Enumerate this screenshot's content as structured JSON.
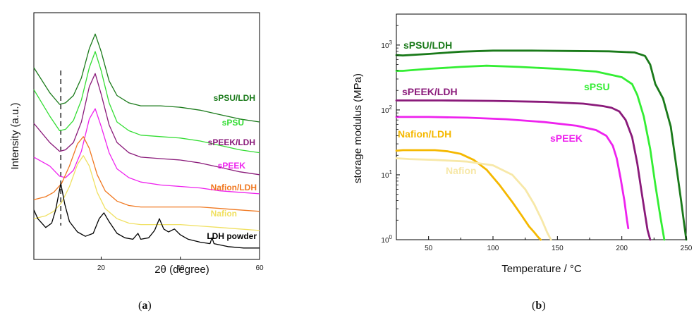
{
  "chart_data": [
    {
      "type": "line",
      "panel": "(a)",
      "panel_letter": "a",
      "xlabel": "2θ (degree)",
      "ylabel": "Intensity (a.u.)",
      "xlim": [
        3,
        60
      ],
      "x_ticks": [
        20,
        40,
        60
      ],
      "grid": false,
      "legend": "labels placed next to curves on right",
      "series": [
        {
          "name": "sPSU/LDH",
          "color": "#1a7a1a",
          "offset": 100,
          "sharp_peaks": false,
          "x": [
            3,
            7,
            9.5,
            11,
            13,
            15,
            17,
            18.5,
            20,
            22,
            24,
            27,
            30,
            35,
            40,
            45,
            50,
            55,
            60
          ],
          "y": [
            125,
            108,
            100,
            101,
            106,
            118,
            138,
            148,
            136,
            116,
            106,
            101,
            99,
            99,
            98,
            96,
            93,
            90,
            88
          ]
        },
        {
          "name": "sPSU",
          "color": "#33dd33",
          "offset": 80,
          "sharp_peaks": false,
          "x": [
            3,
            7,
            9.5,
            11,
            13,
            15,
            17,
            18.5,
            20,
            22,
            24,
            27,
            30,
            35,
            40,
            45,
            50,
            55,
            60
          ],
          "y": [
            110,
            92,
            82,
            83,
            89,
            103,
            125,
            136,
            123,
            101,
            88,
            82,
            79,
            78,
            77,
            75,
            72,
            69,
            67
          ]
        },
        {
          "name": "sPEEK/LDH",
          "color": "#8a1a7a",
          "offset": 62,
          "sharp_peaks": false,
          "x": [
            3,
            7,
            9.5,
            11,
            13,
            15,
            17,
            18.5,
            20,
            22,
            24,
            27,
            30,
            35,
            40,
            45,
            50,
            55,
            60
          ],
          "y": [
            87,
            74,
            68,
            69,
            74,
            88,
            112,
            121,
            107,
            86,
            74,
            67,
            64,
            63,
            62,
            60,
            57,
            54,
            52
          ]
        },
        {
          "name": "sPEEK",
          "color": "#ee22ee",
          "offset": 44,
          "sharp_peaks": false,
          "x": [
            3,
            7,
            9.5,
            11,
            13,
            15,
            17,
            18.5,
            20,
            22,
            24,
            27,
            30,
            35,
            40,
            45,
            50,
            55,
            60
          ],
          "y": [
            64,
            58,
            51,
            50,
            55,
            68,
            90,
            97,
            85,
            67,
            56,
            50,
            47,
            45,
            44,
            43,
            41,
            40,
            39
          ]
        },
        {
          "name": "Nafion/LDH",
          "color": "#f07820",
          "offset": 30,
          "sharp_peaks": false,
          "x": [
            3,
            6,
            8,
            10,
            12,
            14,
            15.5,
            17,
            19,
            21,
            24,
            27,
            30,
            35,
            40,
            45,
            50,
            55,
            60
          ],
          "y": [
            35,
            37,
            40,
            46,
            58,
            73,
            78,
            70,
            52,
            41,
            34,
            31,
            30,
            30,
            30,
            30,
            29,
            28,
            27
          ]
        },
        {
          "name": "Nafion",
          "color": "#f0e060",
          "offset": 18,
          "sharp_peaks": false,
          "x": [
            3,
            6,
            8,
            10,
            12,
            14,
            15.5,
            17,
            19,
            21,
            24,
            27,
            30,
            35,
            40,
            45,
            50,
            55,
            60
          ],
          "y": [
            22,
            24,
            27,
            33,
            44,
            59,
            65,
            58,
            40,
            29,
            22,
            19,
            18,
            18,
            18,
            17,
            16,
            15,
            14
          ]
        },
        {
          "name": "LDH powder",
          "color": "#000000",
          "offset": 0,
          "sharp_peaks": true,
          "x": [
            3,
            4,
            6,
            7.5,
            8.5,
            9.8,
            10.8,
            12,
            14,
            16,
            18,
            19.5,
            20.7,
            22,
            24,
            26,
            28,
            29.3,
            30,
            32,
            33.5,
            34.7,
            35.8,
            37,
            38.5,
            40,
            42,
            45,
            47.5,
            48,
            48.5,
            52,
            56,
            60
          ],
          "y": [
            28,
            22,
            16,
            19,
            28,
            46,
            32,
            20,
            13,
            10,
            12,
            22,
            26,
            20,
            12,
            9,
            8,
            12,
            8,
            9,
            14,
            22,
            15,
            13,
            15,
            11,
            8,
            6,
            5,
            9,
            5,
            3,
            2,
            2
          ]
        }
      ],
      "annotations": [
        "dashed vertical line at 2θ ≈ 9.8 (LDH reflection)"
      ]
    },
    {
      "type": "line",
      "panel": "(b)",
      "panel_letter": "b",
      "xlabel": "Temperature / °C",
      "ylabel": "storage modulus (MPa)",
      "xlim": [
        25,
        250
      ],
      "ylim": [
        1,
        3000
      ],
      "yscale": "log",
      "x_ticks": [
        50,
        100,
        150,
        200,
        250
      ],
      "y_ticks": [
        "10^0",
        "10^1",
        "10^2",
        "10^3"
      ],
      "grid": false,
      "legend": "labels placed next to curves",
      "series": [
        {
          "name": "sPSU/LDH",
          "color": "#1a7a1a",
          "x": [
            25,
            30,
            50,
            75,
            100,
            130,
            160,
            190,
            210,
            218,
            222,
            226,
            232,
            238,
            242,
            246,
            250
          ],
          "y": [
            700,
            690,
            730,
            790,
            820,
            820,
            810,
            800,
            770,
            680,
            500,
            250,
            150,
            55,
            15,
            4,
            1
          ]
        },
        {
          "name": "sPSU",
          "color": "#33ee33",
          "x": [
            25,
            30,
            50,
            75,
            95,
            120,
            150,
            180,
            200,
            208,
            212,
            217,
            222,
            226,
            230,
            233
          ],
          "y": [
            400,
            400,
            430,
            460,
            480,
            460,
            430,
            390,
            320,
            250,
            170,
            80,
            25,
            7,
            2.2,
            1
          ]
        },
        {
          "name": "sPEEK/LDH",
          "color": "#8a1a7a",
          "x": [
            25,
            30,
            60,
            100,
            140,
            170,
            185,
            192,
            198,
            203,
            208,
            212,
            215,
            218,
            220,
            222
          ],
          "y": [
            140,
            140,
            140,
            138,
            133,
            125,
            115,
            108,
            95,
            70,
            38,
            15,
            6,
            2.5,
            1.4,
            1
          ]
        },
        {
          "name": "sPEEK",
          "color": "#ee22ee",
          "x": [
            25,
            30,
            50,
            80,
            110,
            140,
            165,
            180,
            188,
            193,
            196,
            199,
            202,
            204,
            205
          ],
          "y": [
            78,
            78,
            78,
            76,
            72,
            65,
            57,
            49,
            40,
            28,
            18,
            9,
            4,
            2,
            1.5
          ]
        },
        {
          "name": "Nafion/LDH",
          "color": "#f5b800",
          "x": [
            25,
            30,
            40,
            55,
            65,
            75,
            85,
            95,
            105,
            115,
            122,
            128,
            132,
            135,
            137
          ],
          "y": [
            23.5,
            24,
            24,
            24,
            23,
            21,
            17,
            12,
            7,
            3.8,
            2.4,
            1.6,
            1.3,
            1.1,
            1
          ]
        },
        {
          "name": "Nafion",
          "color": "#f7e8a8",
          "x": [
            25,
            35,
            55,
            80,
            100,
            115,
            125,
            132,
            138,
            142,
            145
          ],
          "y": [
            18,
            17.5,
            17,
            16,
            14,
            10,
            6,
            3.5,
            2,
            1.3,
            1
          ]
        }
      ]
    }
  ]
}
